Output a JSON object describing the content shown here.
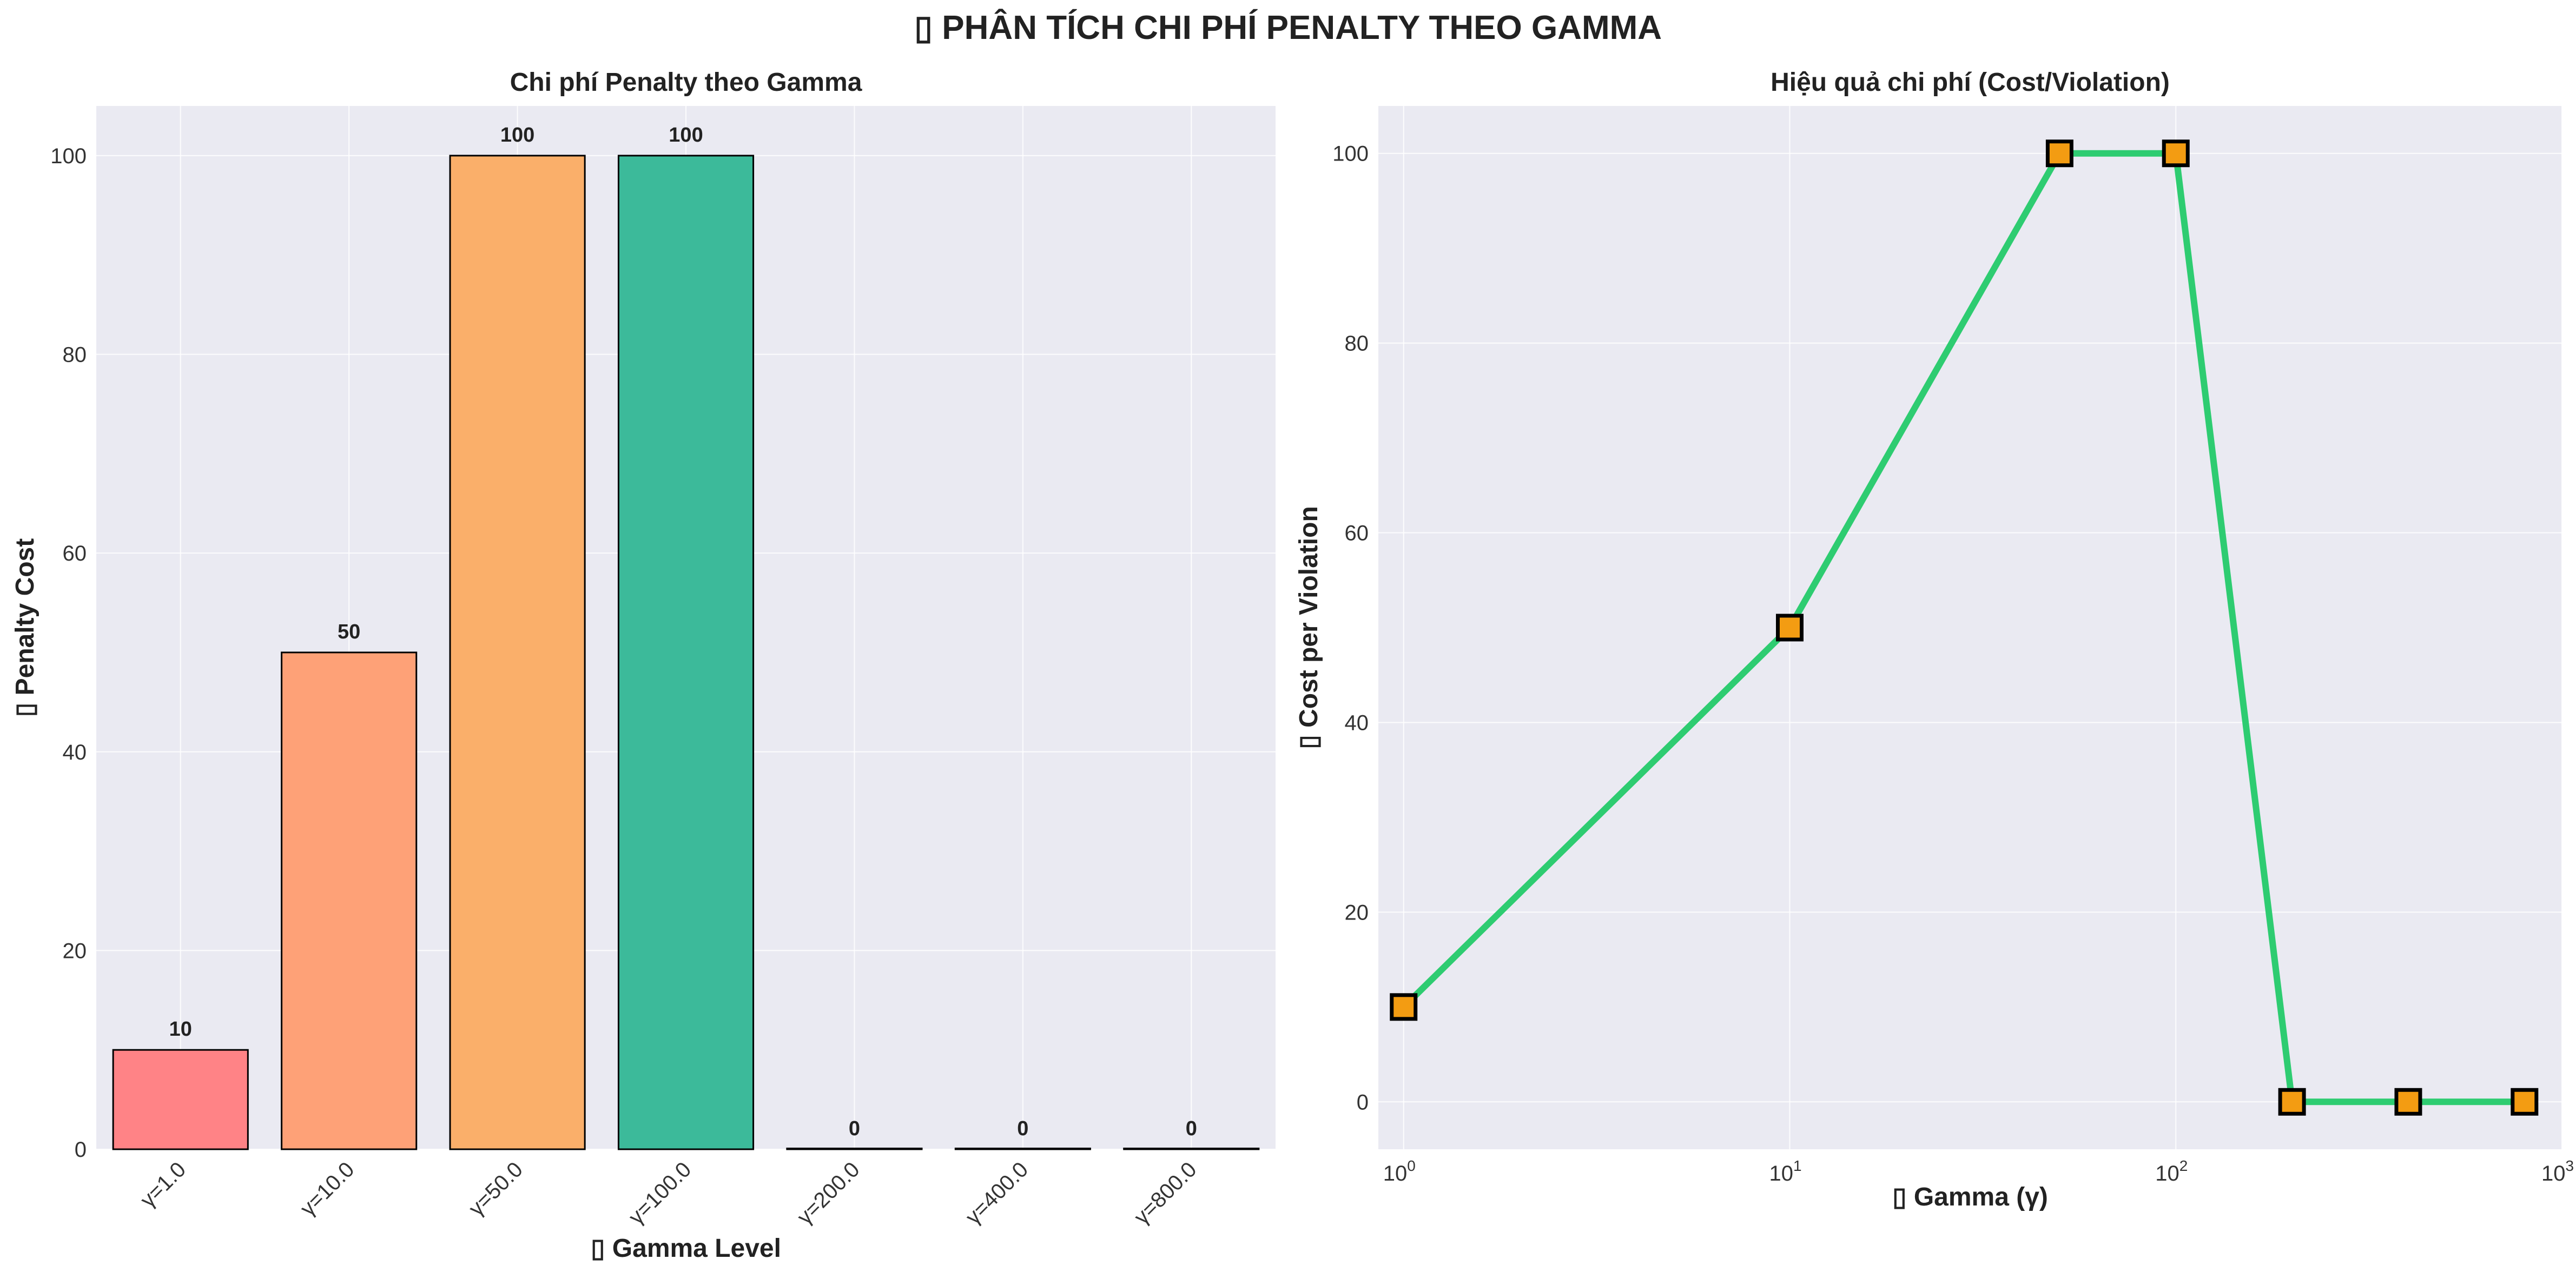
{
  "figure": {
    "title": "▯ PHÂN TÍCH CHI PHÍ PENALTY THEO GAMMA"
  },
  "chart_data": [
    {
      "type": "bar",
      "title": "Chi phí Penalty theo Gamma",
      "xlabel": "▯ Gamma Level",
      "ylabel": "▯ Penalty Cost",
      "categories": [
        "γ=1.0",
        "γ=10.0",
        "γ=50.0",
        "γ=100.0",
        "γ=200.0",
        "γ=400.0",
        "γ=800.0"
      ],
      "values": [
        10,
        50,
        100,
        100,
        0,
        0,
        0
      ],
      "data_labels": [
        "10",
        "50",
        "100",
        "100",
        "0",
        "0",
        "0"
      ],
      "colors": [
        "#ff8386",
        "#fea177",
        "#faaf6a",
        "#3cba9a",
        "#3cba9a",
        "#3cba9a",
        "#3cba9a"
      ],
      "ylim": [
        0,
        105
      ],
      "yticks": [
        0,
        20,
        40,
        60,
        80,
        100
      ],
      "grid": true,
      "background": "#eaeaf2"
    },
    {
      "type": "line",
      "title": "Hiệu quả chi phí (Cost/Violation)",
      "xlabel": "▯ Gamma (γ)",
      "ylabel": "▯ Cost per Violation",
      "x": [
        1,
        10,
        50,
        100,
        200,
        400,
        800
      ],
      "y": [
        10,
        50,
        100,
        100,
        0,
        0,
        0
      ],
      "xscale": "log",
      "xlim": [
        0.86,
        1000
      ],
      "ylim": [
        -5,
        105
      ],
      "xticks": [
        {
          "base": "10",
          "exp": "0",
          "value": 1
        },
        {
          "base": "10",
          "exp": "1",
          "value": 10
        },
        {
          "base": "10",
          "exp": "2",
          "value": 100
        },
        {
          "base": "10",
          "exp": "3",
          "value": 1000
        }
      ],
      "yticks": [
        0,
        20,
        40,
        60,
        80,
        100
      ],
      "line_color": "#2ecc71",
      "marker": "square",
      "marker_color": "#f39c12",
      "marker_edge": "#000000",
      "grid": true,
      "background": "#eaeaf2"
    }
  ]
}
